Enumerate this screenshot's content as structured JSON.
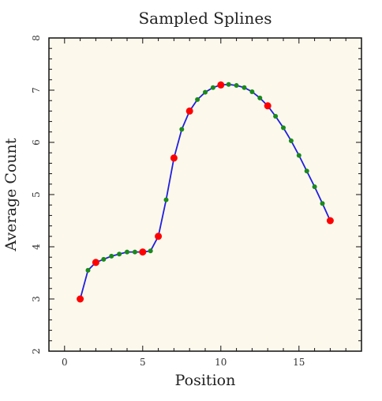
{
  "chart_data": {
    "type": "line",
    "title": "Sampled Splines",
    "xlabel": "Position",
    "ylabel": "Average Count",
    "xlim": [
      -1,
      19
    ],
    "ylim": [
      2,
      8
    ],
    "xticks": [
      "0",
      "5",
      "10",
      "15"
    ],
    "yticks": [
      "2",
      "3",
      "4",
      "5",
      "6",
      "7",
      "8"
    ],
    "grid": false,
    "colors": {
      "background": "#fdf8ec",
      "spline_line": "#1f1fe0",
      "spline_samples": "#1a8a1a",
      "knots": "#ff0000"
    },
    "series": [
      {
        "style": "line",
        "x": [
          1.0,
          1.5,
          2.0,
          2.5,
          3.0,
          3.5,
          4.0,
          4.5,
          5.0,
          5.5,
          6.0,
          6.5,
          7.0,
          7.5,
          8.0,
          8.5,
          9.0,
          9.5,
          10.0,
          10.5,
          11.0,
          11.5,
          12.0,
          12.5,
          13.0,
          13.5,
          14.0,
          14.5,
          15.0,
          15.5,
          16.0,
          16.5,
          17.0
        ],
        "y": [
          3.0,
          3.55,
          3.7,
          3.76,
          3.82,
          3.86,
          3.9,
          3.9,
          3.9,
          3.92,
          4.2,
          4.9,
          5.7,
          6.25,
          6.6,
          6.82,
          6.96,
          7.05,
          7.1,
          7.11,
          7.09,
          7.05,
          6.97,
          6.85,
          6.7,
          6.5,
          6.28,
          6.03,
          5.75,
          5.45,
          5.15,
          4.83,
          4.5
        ]
      },
      {
        "style": "samples",
        "x": [
          1.5,
          2.5,
          3.0,
          3.5,
          4.0,
          4.5,
          5.5,
          6.5,
          7.5,
          8.5,
          9.0,
          9.5,
          10.5,
          11.0,
          11.5,
          12.0,
          12.5,
          13.5,
          14.0,
          14.5,
          15.0,
          15.5,
          16.0,
          16.5
        ],
        "y": [
          3.55,
          3.76,
          3.82,
          3.86,
          3.9,
          3.9,
          3.92,
          4.9,
          6.25,
          6.82,
          6.96,
          7.05,
          7.11,
          7.09,
          7.05,
          6.97,
          6.85,
          6.5,
          6.28,
          6.03,
          5.75,
          5.45,
          5.15,
          4.83
        ]
      },
      {
        "style": "knots",
        "x": [
          1,
          2,
          5,
          6,
          7,
          8,
          10,
          13,
          17
        ],
        "y": [
          3.0,
          3.7,
          3.9,
          4.2,
          5.7,
          6.6,
          7.1,
          6.7,
          4.5
        ]
      }
    ]
  }
}
